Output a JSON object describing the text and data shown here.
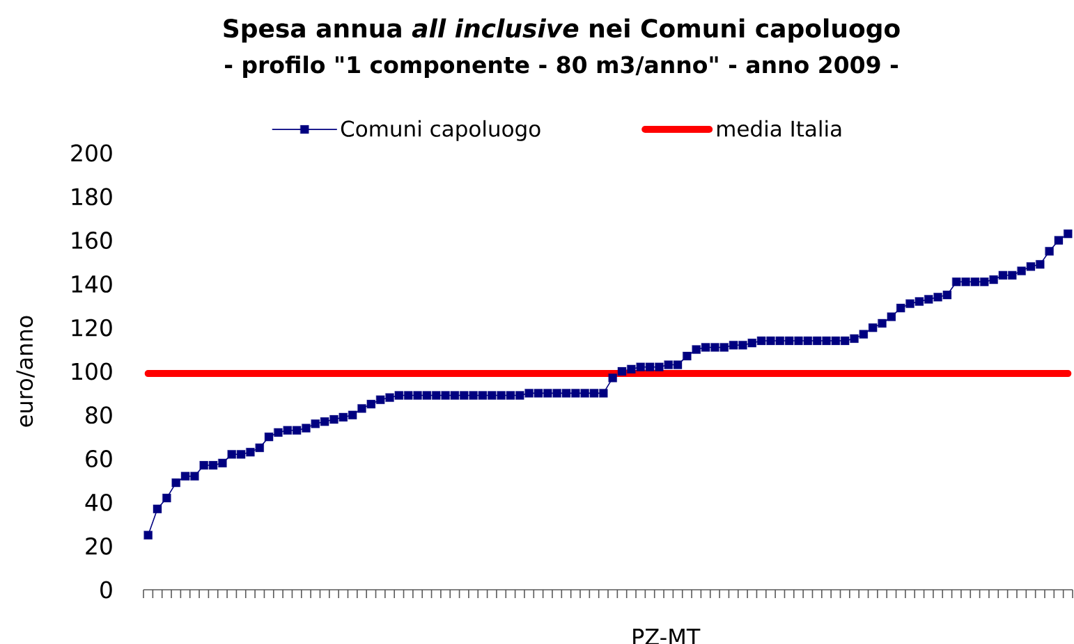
{
  "chart_data": {
    "type": "line",
    "title": "Spesa annua *all inclusive* nei Comuni capoluogo",
    "subtitle": "- profilo \"1 componente - 80 m3/anno\" - anno 2009 -",
    "xlabel": "PZ-MT",
    "ylabel": "euro/anno",
    "categories": [
      null,
      null,
      null,
      null,
      null,
      null,
      null,
      null,
      null,
      null,
      null,
      null,
      null,
      null,
      null,
      null,
      null,
      null,
      null,
      null,
      null,
      null,
      null,
      null,
      null,
      null,
      null,
      null,
      null,
      null,
      null,
      null,
      null,
      null,
      null,
      null,
      null,
      null,
      null,
      null,
      null,
      null,
      null,
      null,
      null,
      null,
      null,
      null,
      null,
      null,
      null,
      null,
      null,
      null,
      null,
      null,
      null,
      null,
      null,
      null,
      null,
      null,
      null,
      null,
      null,
      null,
      null,
      null,
      null,
      null,
      null,
      null,
      null,
      null,
      null,
      null,
      null,
      null,
      null,
      null,
      null,
      null,
      null,
      null,
      null,
      null,
      null,
      null,
      null,
      null,
      null,
      null,
      null,
      null,
      null,
      null,
      null,
      null,
      null,
      null
    ],
    "ylim": [
      0,
      200
    ],
    "yticks": [
      0,
      20,
      40,
      60,
      80,
      100,
      120,
      140,
      160,
      180,
      200
    ],
    "legend": "top",
    "marker": "square",
    "series": [
      {
        "name": "Comuni capoluogo",
        "color": "#000080",
        "values": [
          25,
          37,
          42,
          49,
          52,
          52,
          57,
          57,
          58,
          62,
          62,
          63,
          65,
          70,
          72,
          73,
          73,
          74,
          76,
          77,
          78,
          79,
          80,
          83,
          85,
          87,
          88,
          89,
          89,
          89,
          89,
          89,
          89,
          89,
          89,
          89,
          89,
          89,
          89,
          89,
          89,
          90,
          90,
          90,
          90,
          90,
          90,
          90,
          90,
          90,
          97,
          100,
          101,
          102,
          102,
          102,
          103,
          103,
          107,
          110,
          111,
          111,
          111,
          112,
          112,
          113,
          114,
          114,
          114,
          114,
          114,
          114,
          114,
          114,
          114,
          114,
          115,
          117,
          120,
          122,
          125,
          129,
          131,
          132,
          133,
          134,
          135,
          141,
          141,
          141,
          141,
          142,
          144,
          144,
          146,
          148,
          149,
          155,
          160,
          163
        ]
      },
      {
        "name": "media Italia",
        "color": "#ff0000",
        "marker": "none",
        "values": [
          99,
          99,
          99,
          99,
          99,
          99,
          99,
          99,
          99,
          99,
          99,
          99,
          99,
          99,
          99,
          99,
          99,
          99,
          99,
          99,
          99,
          99,
          99,
          99,
          99,
          99,
          99,
          99,
          99,
          99,
          99,
          99,
          99,
          99,
          99,
          99,
          99,
          99,
          99,
          99,
          99,
          99,
          99,
          99,
          99,
          99,
          99,
          99,
          99,
          99,
          99,
          99,
          99,
          99,
          99,
          99,
          99,
          99,
          99,
          99,
          99,
          99,
          99,
          99,
          99,
          99,
          99,
          99,
          99,
          99,
          99,
          99,
          99,
          99,
          99,
          99,
          99,
          99,
          99,
          99,
          99,
          99,
          99,
          99,
          99,
          99,
          99,
          99,
          99,
          99,
          99,
          99,
          99,
          99,
          99,
          99,
          99,
          99,
          99,
          99
        ]
      }
    ]
  }
}
